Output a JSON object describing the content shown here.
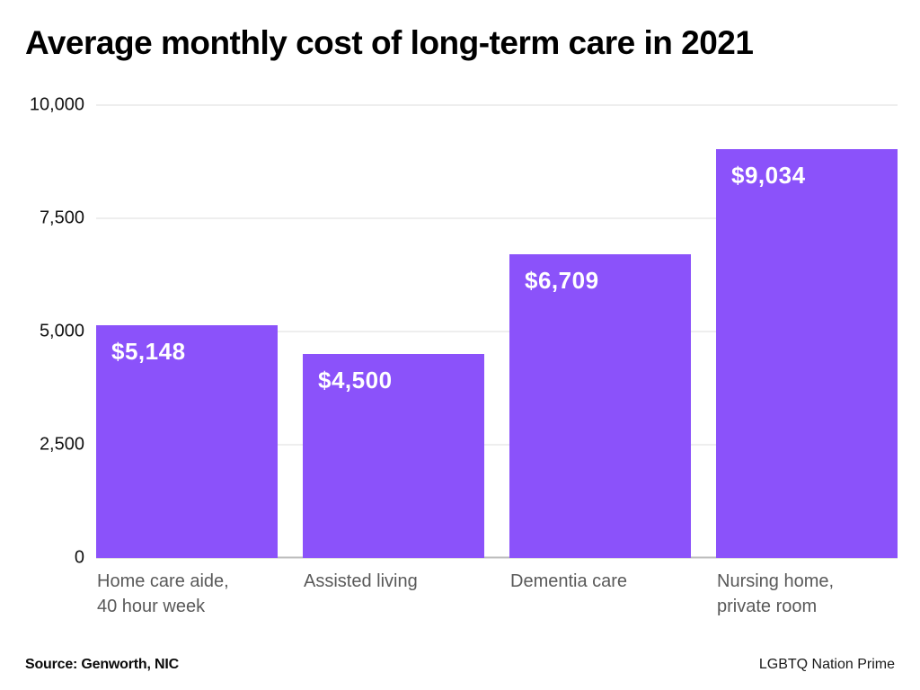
{
  "title": "Average monthly cost of long-term care in 2021",
  "footer": {
    "source": "Source: Genworth, NIC",
    "brand": "LGBTQ Nation Prime"
  },
  "colors": {
    "bar": "#8B52FA",
    "bar_label": "#ffffff",
    "gridline": "#dcdcdc",
    "zero_line": "#bdbdbd",
    "axis_label": "#111111",
    "category_label": "#595959",
    "title": "#000000",
    "background": "#ffffff"
  },
  "chart_data": {
    "type": "bar",
    "title": "Average monthly cost of long-term care in 2021",
    "categories": [
      "Home care aide,\n40 hour week",
      "Assisted living",
      "Dementia care",
      "Nursing home,\nprivate room"
    ],
    "values": [
      5148,
      4500,
      6709,
      9034
    ],
    "bar_labels": [
      "$5,148",
      "$4,500",
      "$6,709",
      "$9,034"
    ],
    "xlabel": "",
    "ylabel": "",
    "ylim": [
      0,
      10000
    ],
    "yticks": [
      0,
      2500,
      5000,
      7500,
      10000
    ],
    "ytick_labels": [
      "0",
      "2,500",
      "5,000",
      "7,500",
      "10,000"
    ],
    "grid": true,
    "legend": false
  }
}
